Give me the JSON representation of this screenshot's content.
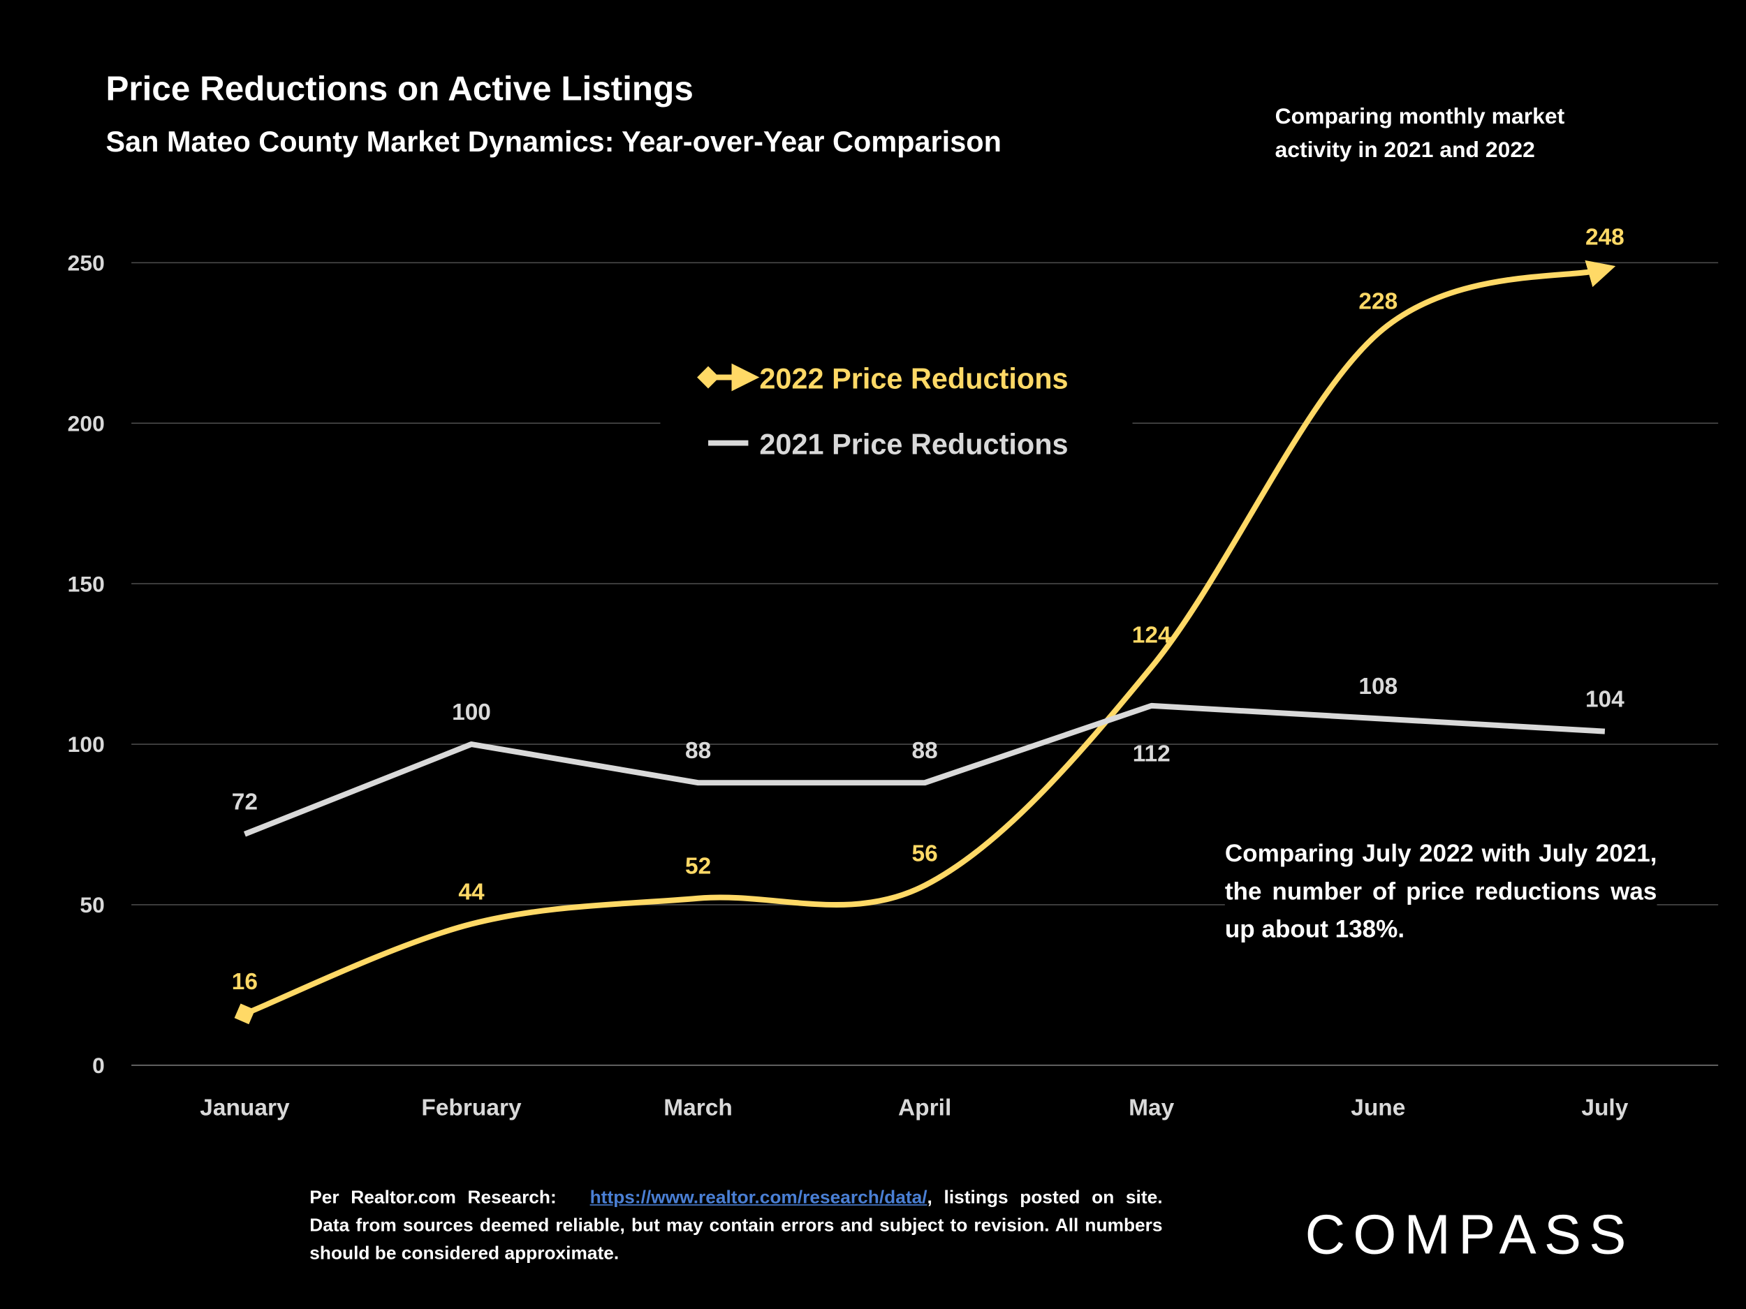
{
  "chart_data": {
    "type": "line",
    "title": "Price Reductions on Active Listings",
    "subtitle": "San Mateo County Market Dynamics: Year-over-Year Comparison",
    "annotation_top": "Comparing monthly market activity in 2021 and 2022",
    "annotation": "Comparing July 2022 with July 2021, the number of price reductions was up about 138%.",
    "categories": [
      "January",
      "February",
      "March",
      "April",
      "May",
      "June",
      "July"
    ],
    "series": [
      {
        "name": "2022 Price Reductions",
        "color": "#FFD966",
        "values": [
          16,
          44,
          52,
          56,
          124,
          228,
          248
        ]
      },
      {
        "name": "2021 Price Reductions",
        "color": "#D9D9D9",
        "values": [
          72,
          100,
          88,
          88,
          112,
          108,
          104
        ]
      }
    ],
    "ylim": [
      0,
      250
    ],
    "yticks": [
      0,
      50,
      100,
      150,
      200,
      250
    ],
    "grid": true,
    "legend": "top-center"
  },
  "footnote": {
    "prefix": "Per Realtor.com Research:",
    "link": "https://www.realtor.com/research/data/",
    "suffix": ", listings posted on site. Data from sources deemed reliable, but may contain errors and subject to revision. All numbers should be considered approximate."
  },
  "logo": "COMPASS"
}
